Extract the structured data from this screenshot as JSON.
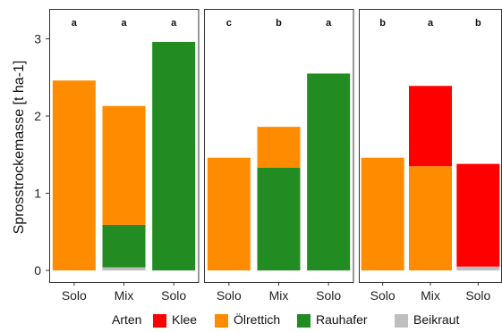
{
  "chart_data": {
    "type": "bar",
    "stacked": true,
    "ylabel": "Sprosstrockemasse [t ha-1]",
    "xlabel": "",
    "ylim": [
      0,
      3.3
    ],
    "yticks": [
      0,
      1,
      2,
      3
    ],
    "grid": false,
    "legend": {
      "position": "bottom",
      "title": "Arten",
      "entries": [
        {
          "name": "Klee",
          "color": "#ff0000"
        },
        {
          "name": "Ölrettich",
          "color": "#ff8c00"
        },
        {
          "name": "Rauhafer",
          "color": "#228b22"
        },
        {
          "name": "Beikraut",
          "color": "#bebebe"
        }
      ]
    },
    "series_order": [
      "Beikraut",
      "Rauhafer",
      "Ölrettich",
      "Klee"
    ],
    "colors": {
      "Klee": "#ff0000",
      "Ölrettich": "#ff8c00",
      "Rauhafer": "#228b22",
      "Beikraut": "#bebebe"
    },
    "panels": [
      {
        "bars": [
          {
            "label": "Solo",
            "sig": "a",
            "values": {
              "Beikraut": 0,
              "Rauhafer": 0,
              "Ölrettich": 2.46,
              "Klee": 0
            }
          },
          {
            "label": "Mix",
            "sig": "a",
            "values": {
              "Beikraut": 0.04,
              "Rauhafer": 0.55,
              "Ölrettich": 1.54,
              "Klee": 0
            }
          },
          {
            "label": "Solo",
            "sig": "a",
            "values": {
              "Beikraut": 0,
              "Rauhafer": 2.96,
              "Ölrettich": 0,
              "Klee": 0
            }
          }
        ]
      },
      {
        "bars": [
          {
            "label": "Solo",
            "sig": "c",
            "values": {
              "Beikraut": 0,
              "Rauhafer": 0,
              "Ölrettich": 1.46,
              "Klee": 0
            }
          },
          {
            "label": "Mix",
            "sig": "b",
            "values": {
              "Beikraut": 0,
              "Rauhafer": 1.33,
              "Ölrettich": 0.53,
              "Klee": 0
            }
          },
          {
            "label": "Solo",
            "sig": "a",
            "values": {
              "Beikraut": 0,
              "Rauhafer": 2.55,
              "Ölrettich": 0,
              "Klee": 0
            }
          }
        ]
      },
      {
        "bars": [
          {
            "label": "Solo",
            "sig": "b",
            "values": {
              "Beikraut": 0,
              "Rauhafer": 0,
              "Ölrettich": 1.46,
              "Klee": 0
            }
          },
          {
            "label": "Mix",
            "sig": "a",
            "values": {
              "Beikraut": 0,
              "Rauhafer": 0,
              "Ölrettich": 1.35,
              "Klee": 1.04
            }
          },
          {
            "label": "Solo",
            "sig": "b",
            "values": {
              "Beikraut": 0.05,
              "Rauhafer": 0,
              "Ölrettich": 0,
              "Klee": 1.33
            }
          }
        ]
      }
    ]
  }
}
